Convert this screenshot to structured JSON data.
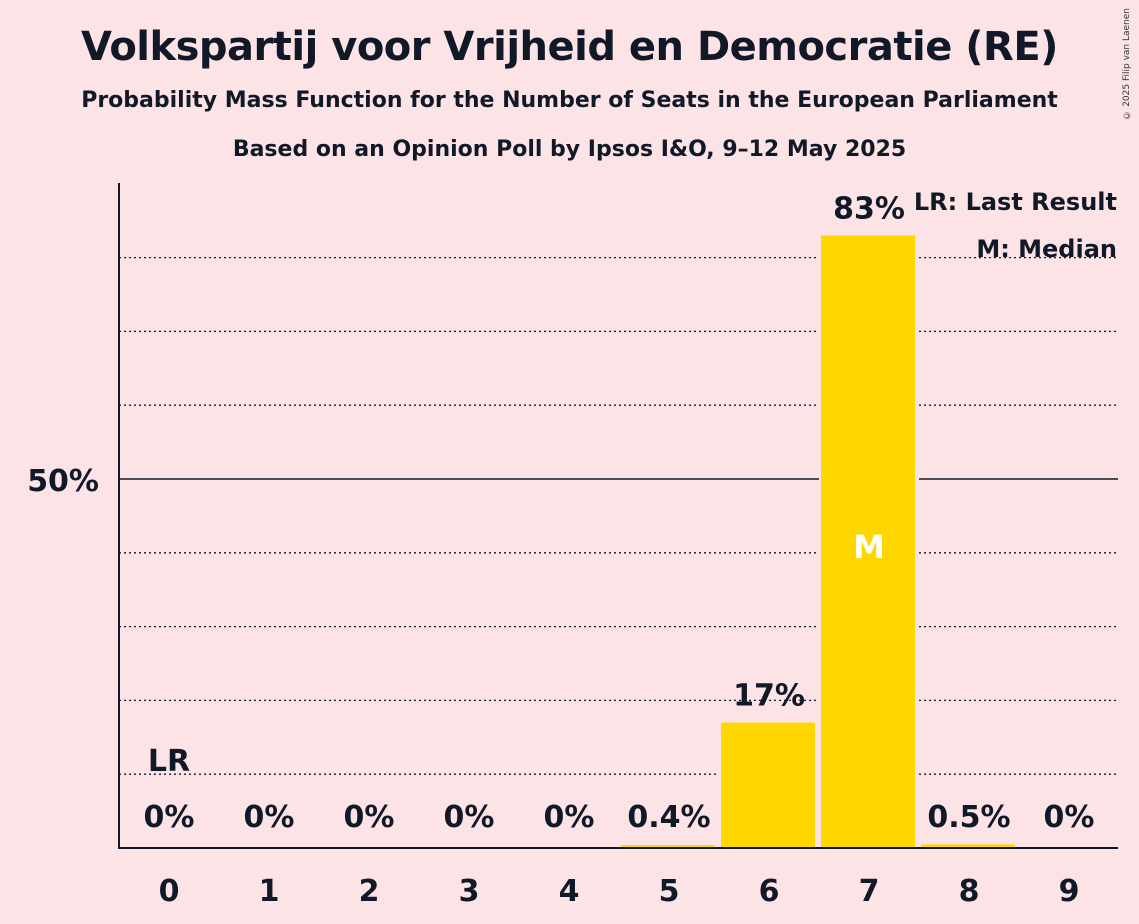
{
  "chart_data": {
    "type": "bar",
    "title": "Volkspartij voor Vrijheid en Democratie (RE)",
    "subtitle": "Probability Mass Function for the Number of Seats in the European Parliament",
    "subtitle2": "Based on an Opinion Poll by Ipsos I&O, 9–12 May 2025",
    "xlabel": "",
    "ylabel": "",
    "ylim": [
      0,
      90
    ],
    "ytick_label": "50%",
    "ytick_value": 50,
    "gridlines": [
      10,
      20,
      30,
      40,
      60,
      70,
      80
    ],
    "categories": [
      "0",
      "1",
      "2",
      "3",
      "4",
      "5",
      "6",
      "7",
      "8",
      "9"
    ],
    "values": [
      0,
      0,
      0,
      0,
      0,
      0.4,
      17,
      83,
      0.5,
      0
    ],
    "value_labels": [
      "0%",
      "0%",
      "0%",
      "0%",
      "0%",
      "0.4%",
      "17%",
      "83%",
      "0.5%",
      "0%"
    ],
    "last_result_index": 0,
    "last_result_marker": "LR",
    "median_index": 7,
    "median_marker": "M",
    "legend": [
      "LR: Last Result",
      "M: Median"
    ],
    "legend_position": "top-right",
    "bar_color": "#ffd700",
    "background_color": "#fce4e6"
  },
  "copyright": "© 2025 Filip van Laenen"
}
